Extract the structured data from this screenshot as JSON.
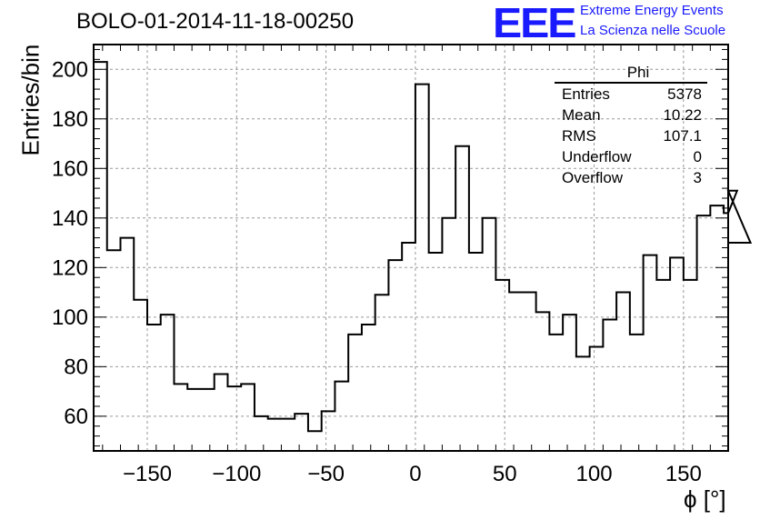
{
  "chart_data": {
    "type": "bar",
    "title": "BOLO-01-2014-11-18-00250",
    "xlabel": "ϕ [°]",
    "ylabel": "Entries/bin",
    "xlim": [
      -180,
      175
    ],
    "ylim": [
      46,
      210
    ],
    "grid": true,
    "bin_width": 7.5,
    "x_edges_start": -180,
    "x_ticks": [
      -150,
      -100,
      -50,
      0,
      50,
      100,
      150
    ],
    "x_tick_labels": [
      "−150",
      "−100",
      "−50",
      "0",
      "50",
      "100",
      "150"
    ],
    "y_ticks": [
      60,
      80,
      100,
      120,
      140,
      160,
      180,
      200
    ],
    "values": [
      203,
      127,
      132,
      107,
      97,
      101,
      73,
      71,
      71,
      77,
      72,
      73,
      60,
      59,
      59,
      61,
      54,
      62,
      74,
      93,
      97,
      109,
      123,
      130,
      194,
      126,
      140,
      169,
      126,
      140,
      115,
      110,
      110,
      102,
      93,
      101,
      84,
      88,
      99,
      110,
      93,
      125,
      115,
      124,
      115,
      141,
      145,
      142,
      151,
      130
    ],
    "stats": {
      "name": "Phi",
      "rows": [
        {
          "label": "Entries",
          "value": "5378"
        },
        {
          "label": "Mean",
          "value": "10.22"
        },
        {
          "label": "RMS",
          "value": "107.1"
        },
        {
          "label": "Underflow",
          "value": "0"
        },
        {
          "label": "Overflow",
          "value": "3"
        }
      ]
    }
  },
  "logo": {
    "mark": "EEE",
    "line1": "Extreme Energy Events",
    "line2": "La Scienza nelle Scuole"
  }
}
